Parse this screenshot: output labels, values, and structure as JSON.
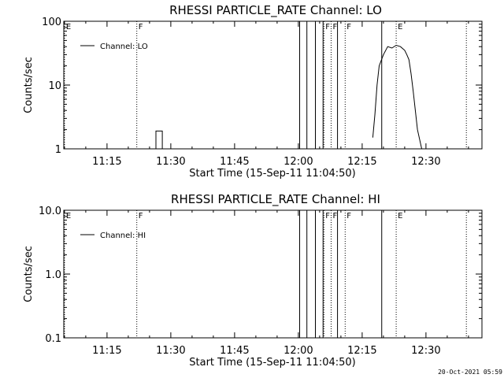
{
  "footer_timestamp": "20-Oct-2021 05:59",
  "chart_data": [
    {
      "type": "line",
      "title": "RHESSI PARTICLE_RATE Channel: LO",
      "xlabel": "Start Time (15-Sep-11 11:04:50)",
      "ylabel": "Counts/sec",
      "yscale": "log",
      "xlim": [
        "11:04:50",
        "12:43:10"
      ],
      "ylim": [
        1,
        100
      ],
      "yticks": [
        {
          "v": 1,
          "label": "1"
        },
        {
          "v": 10,
          "label": "10"
        },
        {
          "v": 100,
          "label": "100"
        }
      ],
      "xticks": [
        "11:15",
        "11:30",
        "11:45",
        "12:00",
        "12:15",
        "12:30"
      ],
      "legend": {
        "entries": [
          "Channel: LO"
        ],
        "position": "top-left"
      },
      "event_markers": [
        {
          "time": "11:05",
          "label": "E",
          "style": "dotted"
        },
        {
          "time": "11:22",
          "label": "F",
          "style": "dotted"
        },
        {
          "time": "12:06",
          "label": "F",
          "style": "dotted"
        },
        {
          "time": "12:07.7",
          "label": "F",
          "style": "dotted"
        },
        {
          "time": "12:11",
          "label": "F",
          "style": "dotted"
        },
        {
          "time": "12:23",
          "label": "E",
          "style": "dotted"
        },
        {
          "time": "12:39.5",
          "label": "",
          "style": "dotted"
        }
      ],
      "vertical_lines": [
        "12:00.3",
        "12:02",
        "12:04",
        "12:05.8",
        "12:09.2",
        "12:19.6"
      ],
      "series": [
        {
          "name": "Channel: LO",
          "x": [
            "11:26.5",
            "11:26.5",
            "11:28",
            "11:28",
            "12:17.5",
            "12:18",
            "12:18.5",
            "12:19",
            "12:20",
            "12:21",
            "12:22",
            "12:23",
            "12:24",
            "12:25",
            "12:25.5",
            "12:26",
            "12:26.5",
            "12:27",
            "12:27.5",
            "12:28",
            "12:29"
          ],
          "y": [
            1,
            1.9,
            1.9,
            1,
            1.5,
            3.5,
            10,
            20,
            30,
            40,
            38,
            42,
            40,
            35,
            30,
            25,
            15,
            8,
            4,
            2,
            1
          ],
          "segments": [
            [
              0,
              3
            ],
            [
              4,
              20
            ]
          ]
        }
      ]
    },
    {
      "type": "line",
      "title": "RHESSI PARTICLE_RATE Channel: HI",
      "xlabel": "Start Time (15-Sep-11 11:04:50)",
      "ylabel": "Counts/sec",
      "yscale": "log",
      "xlim": [
        "11:04:50",
        "12:43:10"
      ],
      "ylim": [
        0.1,
        10
      ],
      "yticks": [
        {
          "v": 0.1,
          "label": "0.1"
        },
        {
          "v": 1,
          "label": "1.0"
        },
        {
          "v": 10,
          "label": "10.0"
        }
      ],
      "xticks": [
        "11:15",
        "11:30",
        "11:45",
        "12:00",
        "12:15",
        "12:30"
      ],
      "legend": {
        "entries": [
          "Channel: HI"
        ],
        "position": "top-left"
      },
      "event_markers": [
        {
          "time": "11:05",
          "label": "E",
          "style": "dotted"
        },
        {
          "time": "11:22",
          "label": "F",
          "style": "dotted"
        },
        {
          "time": "12:06",
          "label": "F",
          "style": "dotted"
        },
        {
          "time": "12:07.7",
          "label": "F",
          "style": "dotted"
        },
        {
          "time": "12:11",
          "label": "F",
          "style": "dotted"
        },
        {
          "time": "12:23",
          "label": "E",
          "style": "dotted"
        },
        {
          "time": "12:39.5",
          "label": "",
          "style": "dotted"
        }
      ],
      "vertical_lines": [
        "12:00.3",
        "12:02",
        "12:04",
        "12:05.8",
        "12:09.2",
        "12:19.6"
      ],
      "series": [
        {
          "name": "Channel: HI",
          "x": [],
          "y": [],
          "segments": []
        }
      ]
    }
  ]
}
